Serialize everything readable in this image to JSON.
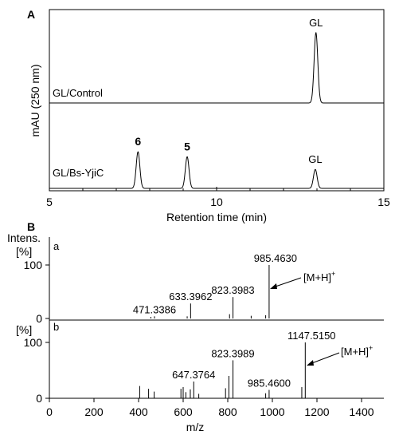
{
  "chart_data": [
    {
      "panel": "A",
      "type": "line",
      "xlabel": "Retention time (min)",
      "ylabel": "mAU (250 nm)",
      "xlim": [
        5,
        15
      ],
      "xticks": [
        "5",
        "10",
        "15"
      ],
      "series": [
        {
          "name": "GL/Control",
          "peaks": [
            {
              "label": "GL",
              "x": 12.97,
              "height": 1.0
            }
          ]
        },
        {
          "name": "GL/Bs-YjiC",
          "peaks": [
            {
              "label": "6",
              "x": 7.65,
              "height": 0.52
            },
            {
              "label": "5",
              "x": 9.12,
              "height": 0.45
            },
            {
              "label": "GL",
              "x": 12.95,
              "height": 0.27
            }
          ]
        }
      ]
    },
    {
      "panel": "B",
      "type": "bar",
      "xlabel": "m/z",
      "ylabel": "Intens.",
      "yunit": "[%]",
      "xlim": [
        0,
        1500
      ],
      "xticks": [
        "0",
        "200",
        "400",
        "600",
        "800",
        "1000",
        "1200",
        "1400"
      ],
      "yticks": [
        "0",
        "100"
      ],
      "ylim": [
        0,
        100
      ],
      "spectra": [
        {
          "label": "a",
          "ion_label": "[M+H]",
          "ion_charge": "+",
          "peaks": [
            {
              "mz": 455,
              "intensity": 3
            },
            {
              "mz": 471.3386,
              "intensity": 4,
              "label": "471.3386"
            },
            {
              "mz": 618,
              "intensity": 4
            },
            {
              "mz": 633.3962,
              "intensity": 28,
              "label": "633.3962"
            },
            {
              "mz": 808,
              "intensity": 8
            },
            {
              "mz": 823.3983,
              "intensity": 40,
              "label": "823.3983"
            },
            {
              "mz": 905,
              "intensity": 5
            },
            {
              "mz": 970,
              "intensity": 6
            },
            {
              "mz": 985.463,
              "intensity": 100,
              "label": "985.4630"
            }
          ]
        },
        {
          "label": "b",
          "ion_label": "[M+H]",
          "ion_charge": "+",
          "peaks": [
            {
              "mz": 405,
              "intensity": 22
            },
            {
              "mz": 445,
              "intensity": 17
            },
            {
              "mz": 470,
              "intensity": 12
            },
            {
              "mz": 590,
              "intensity": 17
            },
            {
              "mz": 600,
              "intensity": 20
            },
            {
              "mz": 612,
              "intensity": 11
            },
            {
              "mz": 632,
              "intensity": 16
            },
            {
              "mz": 647.3764,
              "intensity": 30,
              "label": "647.3764"
            },
            {
              "mz": 670,
              "intensity": 8
            },
            {
              "mz": 790,
              "intensity": 18
            },
            {
              "mz": 805,
              "intensity": 40
            },
            {
              "mz": 823.3989,
              "intensity": 68,
              "label": "823.3989"
            },
            {
              "mz": 970,
              "intensity": 9
            },
            {
              "mz": 985.46,
              "intensity": 15,
              "label": "985.4600"
            },
            {
              "mz": 1132,
              "intensity": 20
            },
            {
              "mz": 1147.515,
              "intensity": 100,
              "label": "1147.5150"
            }
          ]
        }
      ]
    }
  ]
}
